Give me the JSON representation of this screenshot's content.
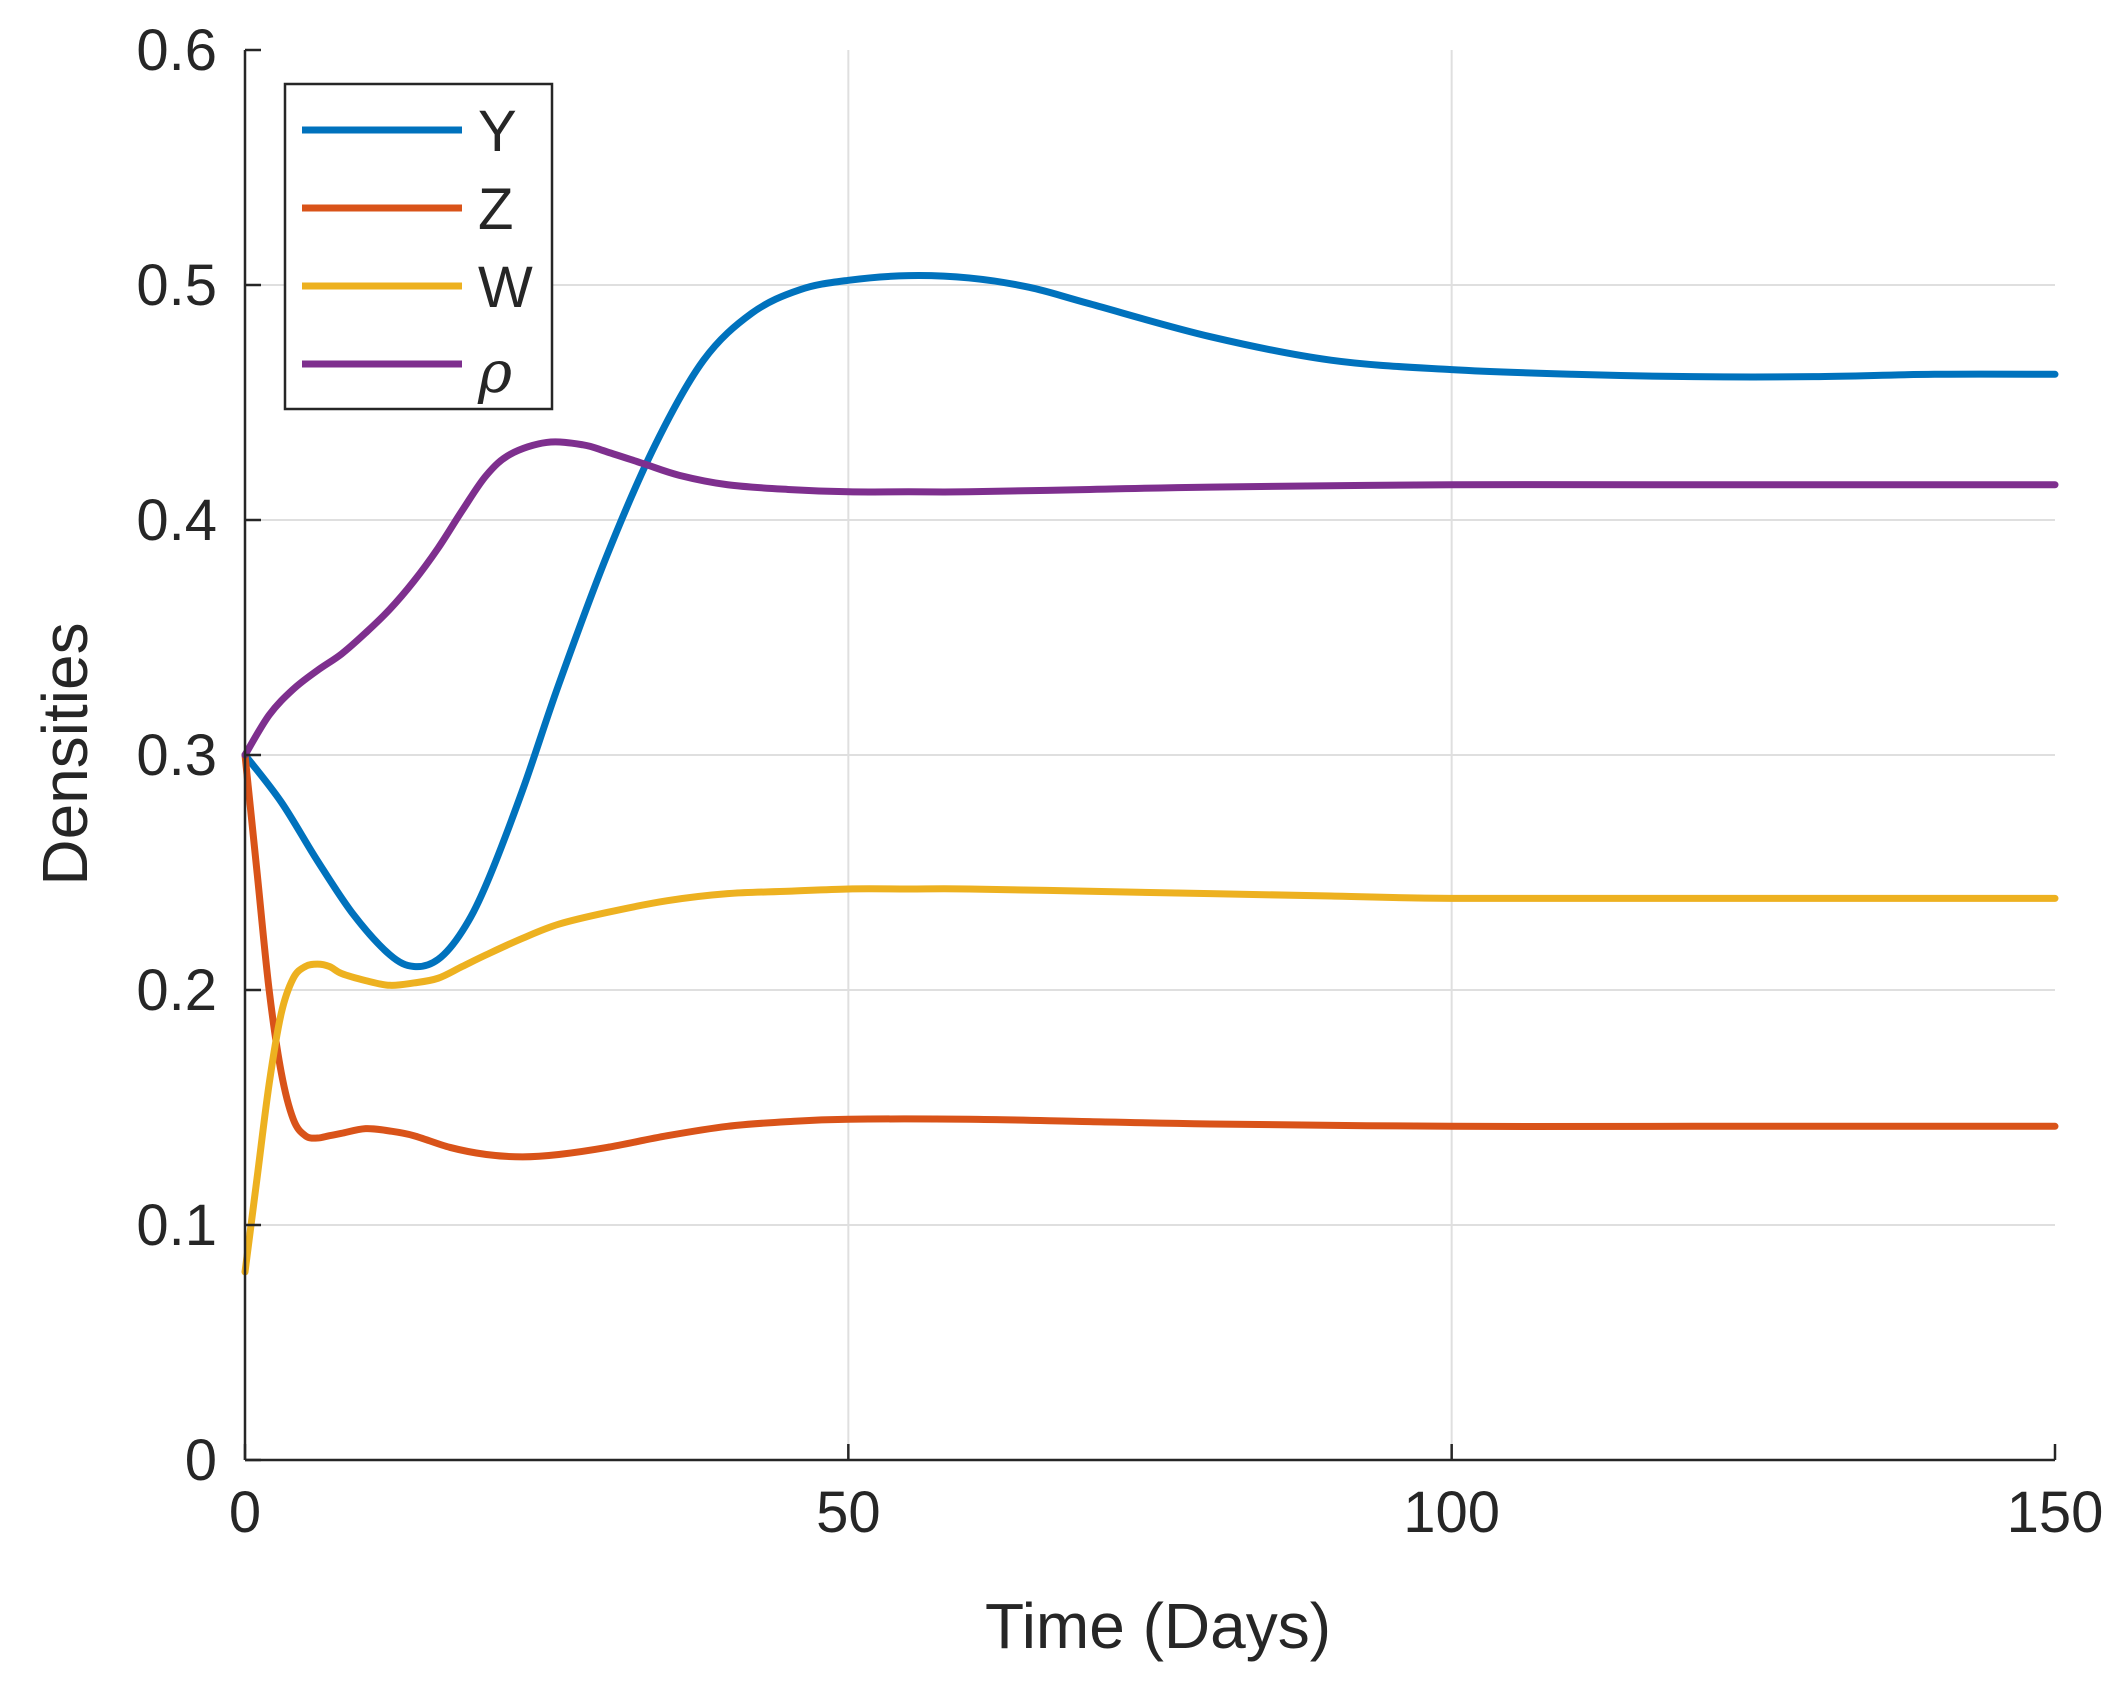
{
  "chart_data": {
    "type": "line",
    "title": "",
    "xlabel": "Time (Days)",
    "ylabel": "Densities",
    "xlim": [
      0,
      150
    ],
    "ylim": [
      0,
      0.6
    ],
    "xticks": [
      0,
      50,
      100,
      150
    ],
    "yticks": [
      0,
      0.1,
      0.2,
      0.3,
      0.4,
      0.5,
      0.6
    ],
    "xtick_labels": [
      "0",
      "50",
      "100",
      "150"
    ],
    "ytick_labels": [
      "0",
      "0.1",
      "0.2",
      "0.3",
      "0.4",
      "0.5",
      "0.6"
    ],
    "grid": true,
    "legend_position": "top-left",
    "series": [
      {
        "name": "Y",
        "color": "#0072BD",
        "x": [
          0,
          3,
          6,
          9,
          12,
          14,
          16,
          18,
          20,
          23,
          26,
          30,
          34,
          38,
          42,
          46,
          50,
          55,
          60,
          65,
          70,
          80,
          90,
          100,
          110,
          120,
          130,
          140,
          150
        ],
        "y": [
          0.3,
          0.28,
          0.255,
          0.232,
          0.215,
          0.21,
          0.213,
          0.225,
          0.245,
          0.285,
          0.33,
          0.385,
          0.432,
          0.468,
          0.488,
          0.498,
          0.502,
          0.504,
          0.503,
          0.499,
          0.492,
          0.478,
          0.468,
          0.464,
          0.462,
          0.461,
          0.461,
          0.462,
          0.462
        ]
      },
      {
        "name": "Z",
        "color": "#D95319",
        "x": [
          0,
          1,
          2,
          3,
          4,
          5,
          6,
          7,
          8,
          10,
          12,
          14,
          17,
          20,
          23,
          26,
          30,
          35,
          40,
          45,
          50,
          60,
          70,
          80,
          100,
          120,
          150
        ],
        "y": [
          0.3,
          0.25,
          0.2,
          0.165,
          0.145,
          0.138,
          0.137,
          0.138,
          0.139,
          0.141,
          0.14,
          0.138,
          0.133,
          0.13,
          0.129,
          0.13,
          0.133,
          0.138,
          0.142,
          0.144,
          0.145,
          0.145,
          0.144,
          0.143,
          0.142,
          0.142,
          0.142
        ]
      },
      {
        "name": "W",
        "color": "#EDB120",
        "x": [
          0,
          1,
          2,
          3,
          4,
          5,
          6,
          7,
          8,
          10,
          12,
          14,
          16,
          18,
          20,
          23,
          26,
          30,
          35,
          40,
          45,
          50,
          55,
          60,
          70,
          80,
          90,
          100,
          120,
          150
        ],
        "y": [
          0.08,
          0.12,
          0.16,
          0.19,
          0.205,
          0.21,
          0.211,
          0.21,
          0.207,
          0.204,
          0.202,
          0.203,
          0.205,
          0.21,
          0.215,
          0.222,
          0.228,
          0.233,
          0.238,
          0.241,
          0.242,
          0.243,
          0.243,
          0.243,
          0.242,
          0.241,
          0.24,
          0.239,
          0.239,
          0.239
        ]
      },
      {
        "name": "ρ",
        "color": "#7E2F8E",
        "x": [
          0,
          2,
          4,
          6,
          8,
          10,
          12,
          14,
          16,
          18,
          20,
          22,
          25,
          28,
          30,
          33,
          36,
          40,
          45,
          50,
          55,
          60,
          70,
          80,
          100,
          120,
          150
        ],
        "y": [
          0.3,
          0.317,
          0.328,
          0.336,
          0.343,
          0.352,
          0.362,
          0.374,
          0.388,
          0.404,
          0.419,
          0.428,
          0.433,
          0.432,
          0.429,
          0.424,
          0.419,
          0.415,
          0.413,
          0.412,
          0.412,
          0.412,
          0.413,
          0.414,
          0.415,
          0.415,
          0.415
        ]
      }
    ]
  }
}
